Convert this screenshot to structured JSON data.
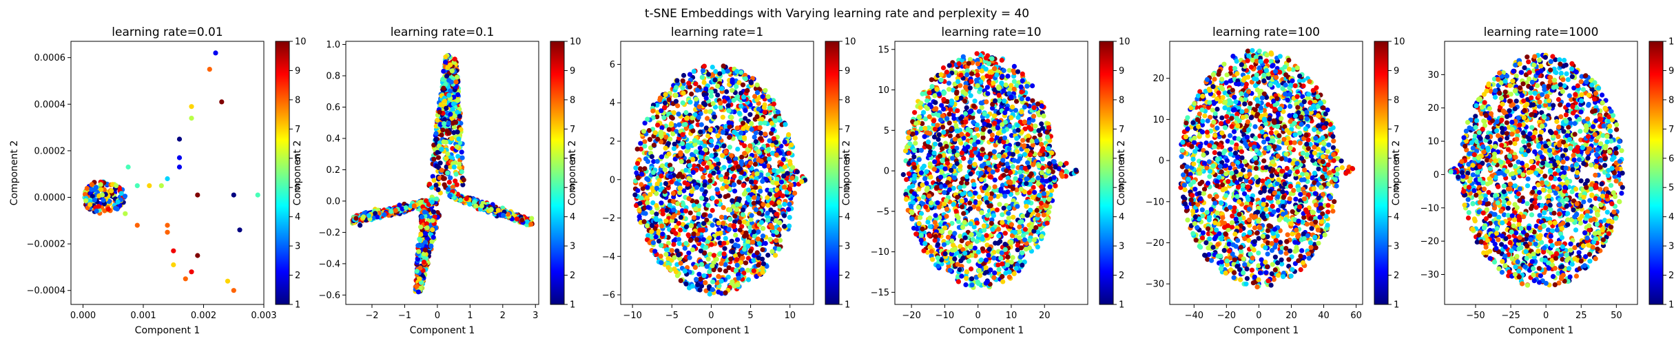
{
  "figure": {
    "title": "t-SNE Embeddings with Varying learning rate and perplexity = 40"
  },
  "colormap": {
    "name": "jet",
    "range": [
      1,
      10
    ],
    "ticks": [
      "1",
      "2",
      "3",
      "4",
      "5",
      "6",
      "7",
      "8",
      "9",
      "10"
    ]
  },
  "chart_data": [
    {
      "type": "scatter",
      "title": "learning rate=0.01",
      "xlabel": "Component 1",
      "ylabel": "Component 2",
      "xlim": [
        -0.0002,
        0.003
      ],
      "ylim": [
        -0.00046,
        0.00067
      ],
      "xticks": [
        0,
        0.001,
        0.002,
        0.003
      ],
      "xtick_labels": [
        "0.000",
        "0.001",
        "0.002",
        "0.003"
      ],
      "yticks": [
        -0.0004,
        -0.0002,
        0,
        0.0002,
        0.0004,
        0.0006
      ],
      "ytick_labels": [
        "−0.0004",
        "−0.0002",
        "0.0000",
        "0.0002",
        "0.0004",
        "0.0006"
      ],
      "cloud": {
        "shape": "blob",
        "cx": 0.0003,
        "cy": 0.0,
        "rx": 0.0004,
        "ry": 7e-05,
        "n": 170
      },
      "outliers": [
        [
          0.00055,
          5e-05,
          6
        ],
        [
          0.0007,
          -7e-05,
          6
        ],
        [
          0.00075,
          0.00013,
          5
        ],
        [
          0.0009,
          -0.00012,
          8
        ],
        [
          0.0009,
          5e-05,
          5
        ],
        [
          0.0011,
          5e-05,
          7
        ],
        [
          0.0013,
          5e-05,
          6
        ],
        [
          0.0014,
          8e-05,
          4
        ],
        [
          0.0014,
          -0.00012,
          8
        ],
        [
          0.0014,
          -0.00015,
          8
        ],
        [
          0.0015,
          -0.00023,
          9
        ],
        [
          0.0015,
          -0.00029,
          7
        ],
        [
          0.0016,
          0.00013,
          2
        ],
        [
          0.0016,
          0.00017,
          2
        ],
        [
          0.0016,
          0.00025,
          1
        ],
        [
          0.0017,
          -0.00035,
          8
        ],
        [
          0.0018,
          -0.00032,
          9
        ],
        [
          0.0018,
          0.00034,
          6
        ],
        [
          0.0018,
          0.00039,
          7
        ],
        [
          0.0019,
          -0.00025,
          10
        ],
        [
          0.0019,
          1e-05,
          10
        ],
        [
          0.0021,
          0.00055,
          8
        ],
        [
          0.0022,
          0.00062,
          2
        ],
        [
          0.0023,
          0.00041,
          10
        ],
        [
          0.0024,
          -0.00036,
          7
        ],
        [
          0.0025,
          -0.0004,
          8
        ],
        [
          0.0025,
          1e-05,
          1
        ],
        [
          0.0026,
          -0.00014,
          1
        ],
        [
          0.0029,
          1e-05,
          5
        ]
      ]
    },
    {
      "type": "scatter",
      "title": "learning rate=0.1",
      "xlabel": "Component 1",
      "ylabel": "Component 2",
      "xlim": [
        -2.8,
        3.1
      ],
      "ylim": [
        -0.66,
        1.02
      ],
      "xticks": [
        -2,
        -1,
        0,
        1,
        2,
        3
      ],
      "xtick_labels": [
        "−2",
        "−1",
        "0",
        "1",
        "2",
        "3"
      ],
      "yticks": [
        -0.6,
        -0.4,
        -0.2,
        0,
        0.2,
        0.4,
        0.6,
        0.8,
        1.0
      ],
      "ytick_labels": [
        "−0.6",
        "−0.4",
        "−0.2",
        "0.0",
        "0.2",
        "0.4",
        "0.6",
        "0.8",
        "1.0"
      ],
      "cloud": {
        "shape": "arms",
        "arms": [
          {
            "x0": 0,
            "y0": 0,
            "x1": -2.6,
            "y1": -0.12,
            "width": 0.09,
            "n": 500
          },
          {
            "x0": 0.3,
            "y0": 0.05,
            "x1": 0.4,
            "y1": 0.92,
            "width": 0.28,
            "n": 450
          },
          {
            "x0": 0.3,
            "y0": 0.05,
            "x1": 2.9,
            "y1": -0.14,
            "width": 0.1,
            "n": 380
          },
          {
            "x0": -0.2,
            "y0": -0.05,
            "x1": -0.6,
            "y1": -0.57,
            "width": 0.18,
            "n": 260
          }
        ]
      }
    },
    {
      "type": "scatter",
      "title": "learning rate=1",
      "xlabel": "Component 1",
      "ylabel": "Component 2",
      "xlim": [
        -11.5,
        13
      ],
      "ylim": [
        -6.5,
        7.2
      ],
      "xticks": [
        -10,
        -5,
        0,
        5,
        10
      ],
      "xtick_labels": [
        "−10",
        "−5",
        "0",
        "5",
        "10"
      ],
      "yticks": [
        -6,
        -4,
        -2,
        0,
        2,
        4,
        6
      ],
      "ytick_labels": [
        "−6",
        "−4",
        "−2",
        "0",
        "2",
        "4",
        "6"
      ],
      "cloud": {
        "shape": "ellipse",
        "cx": 0.5,
        "cy": 0,
        "rx": 10.3,
        "ry": 6.0,
        "tip": 12,
        "n": 1900
      }
    },
    {
      "type": "scatter",
      "title": "learning rate=10",
      "xlabel": "Component 1",
      "ylabel": "Component 2",
      "xlim": [
        -25,
        33
      ],
      "ylim": [
        -16.5,
        16
      ],
      "xticks": [
        -20,
        -10,
        0,
        10,
        20
      ],
      "xtick_labels": [
        "−20",
        "−10",
        "0",
        "10",
        "20"
      ],
      "yticks": [
        -15,
        -10,
        -5,
        0,
        5,
        10,
        15
      ],
      "ytick_labels": [
        "−15",
        "−10",
        "−5",
        "0",
        "5",
        "10",
        "15"
      ],
      "cloud": {
        "shape": "ellipse",
        "cx": 0.5,
        "cy": 0,
        "rx": 23,
        "ry": 14.5,
        "tip": 30,
        "n": 1900
      }
    },
    {
      "type": "scatter",
      "title": "learning rate=100",
      "xlabel": "Component 1",
      "ylabel": "Component 2",
      "xlim": [
        -55,
        64
      ],
      "ylim": [
        -35,
        29
      ],
      "xticks": [
        -40,
        -20,
        0,
        20,
        40,
        60
      ],
      "xtick_labels": [
        "−40",
        "−20",
        "0",
        "20",
        "40",
        "60"
      ],
      "yticks": [
        -30,
        -20,
        -10,
        0,
        10,
        20
      ],
      "ytick_labels": [
        "−30",
        "−20",
        "−10",
        "0",
        "10",
        "20"
      ],
      "cloud": {
        "shape": "ellipse",
        "cx": 0,
        "cy": -2,
        "rx": 49,
        "ry": 29,
        "tip": 58,
        "n": 1900
      }
    },
    {
      "type": "scatter",
      "title": "learning rate=1000",
      "xlabel": "Component 1",
      "ylabel": "Component 2",
      "xlim": [
        -72,
        65
      ],
      "ylim": [
        -39,
        40
      ],
      "xticks": [
        -50,
        -25,
        0,
        25,
        50
      ],
      "xtick_labels": [
        "−50",
        "−25",
        "0",
        "25",
        "50"
      ],
      "yticks": [
        -30,
        -20,
        -10,
        0,
        10,
        20,
        30
      ],
      "ytick_labels": [
        "−30",
        "−20",
        "−10",
        "0",
        "10",
        "20",
        "30"
      ],
      "cloud": {
        "shape": "ellipse",
        "cx": -3,
        "cy": 1,
        "rx": 58,
        "ry": 35,
        "tip": -68,
        "n": 1900
      }
    }
  ]
}
